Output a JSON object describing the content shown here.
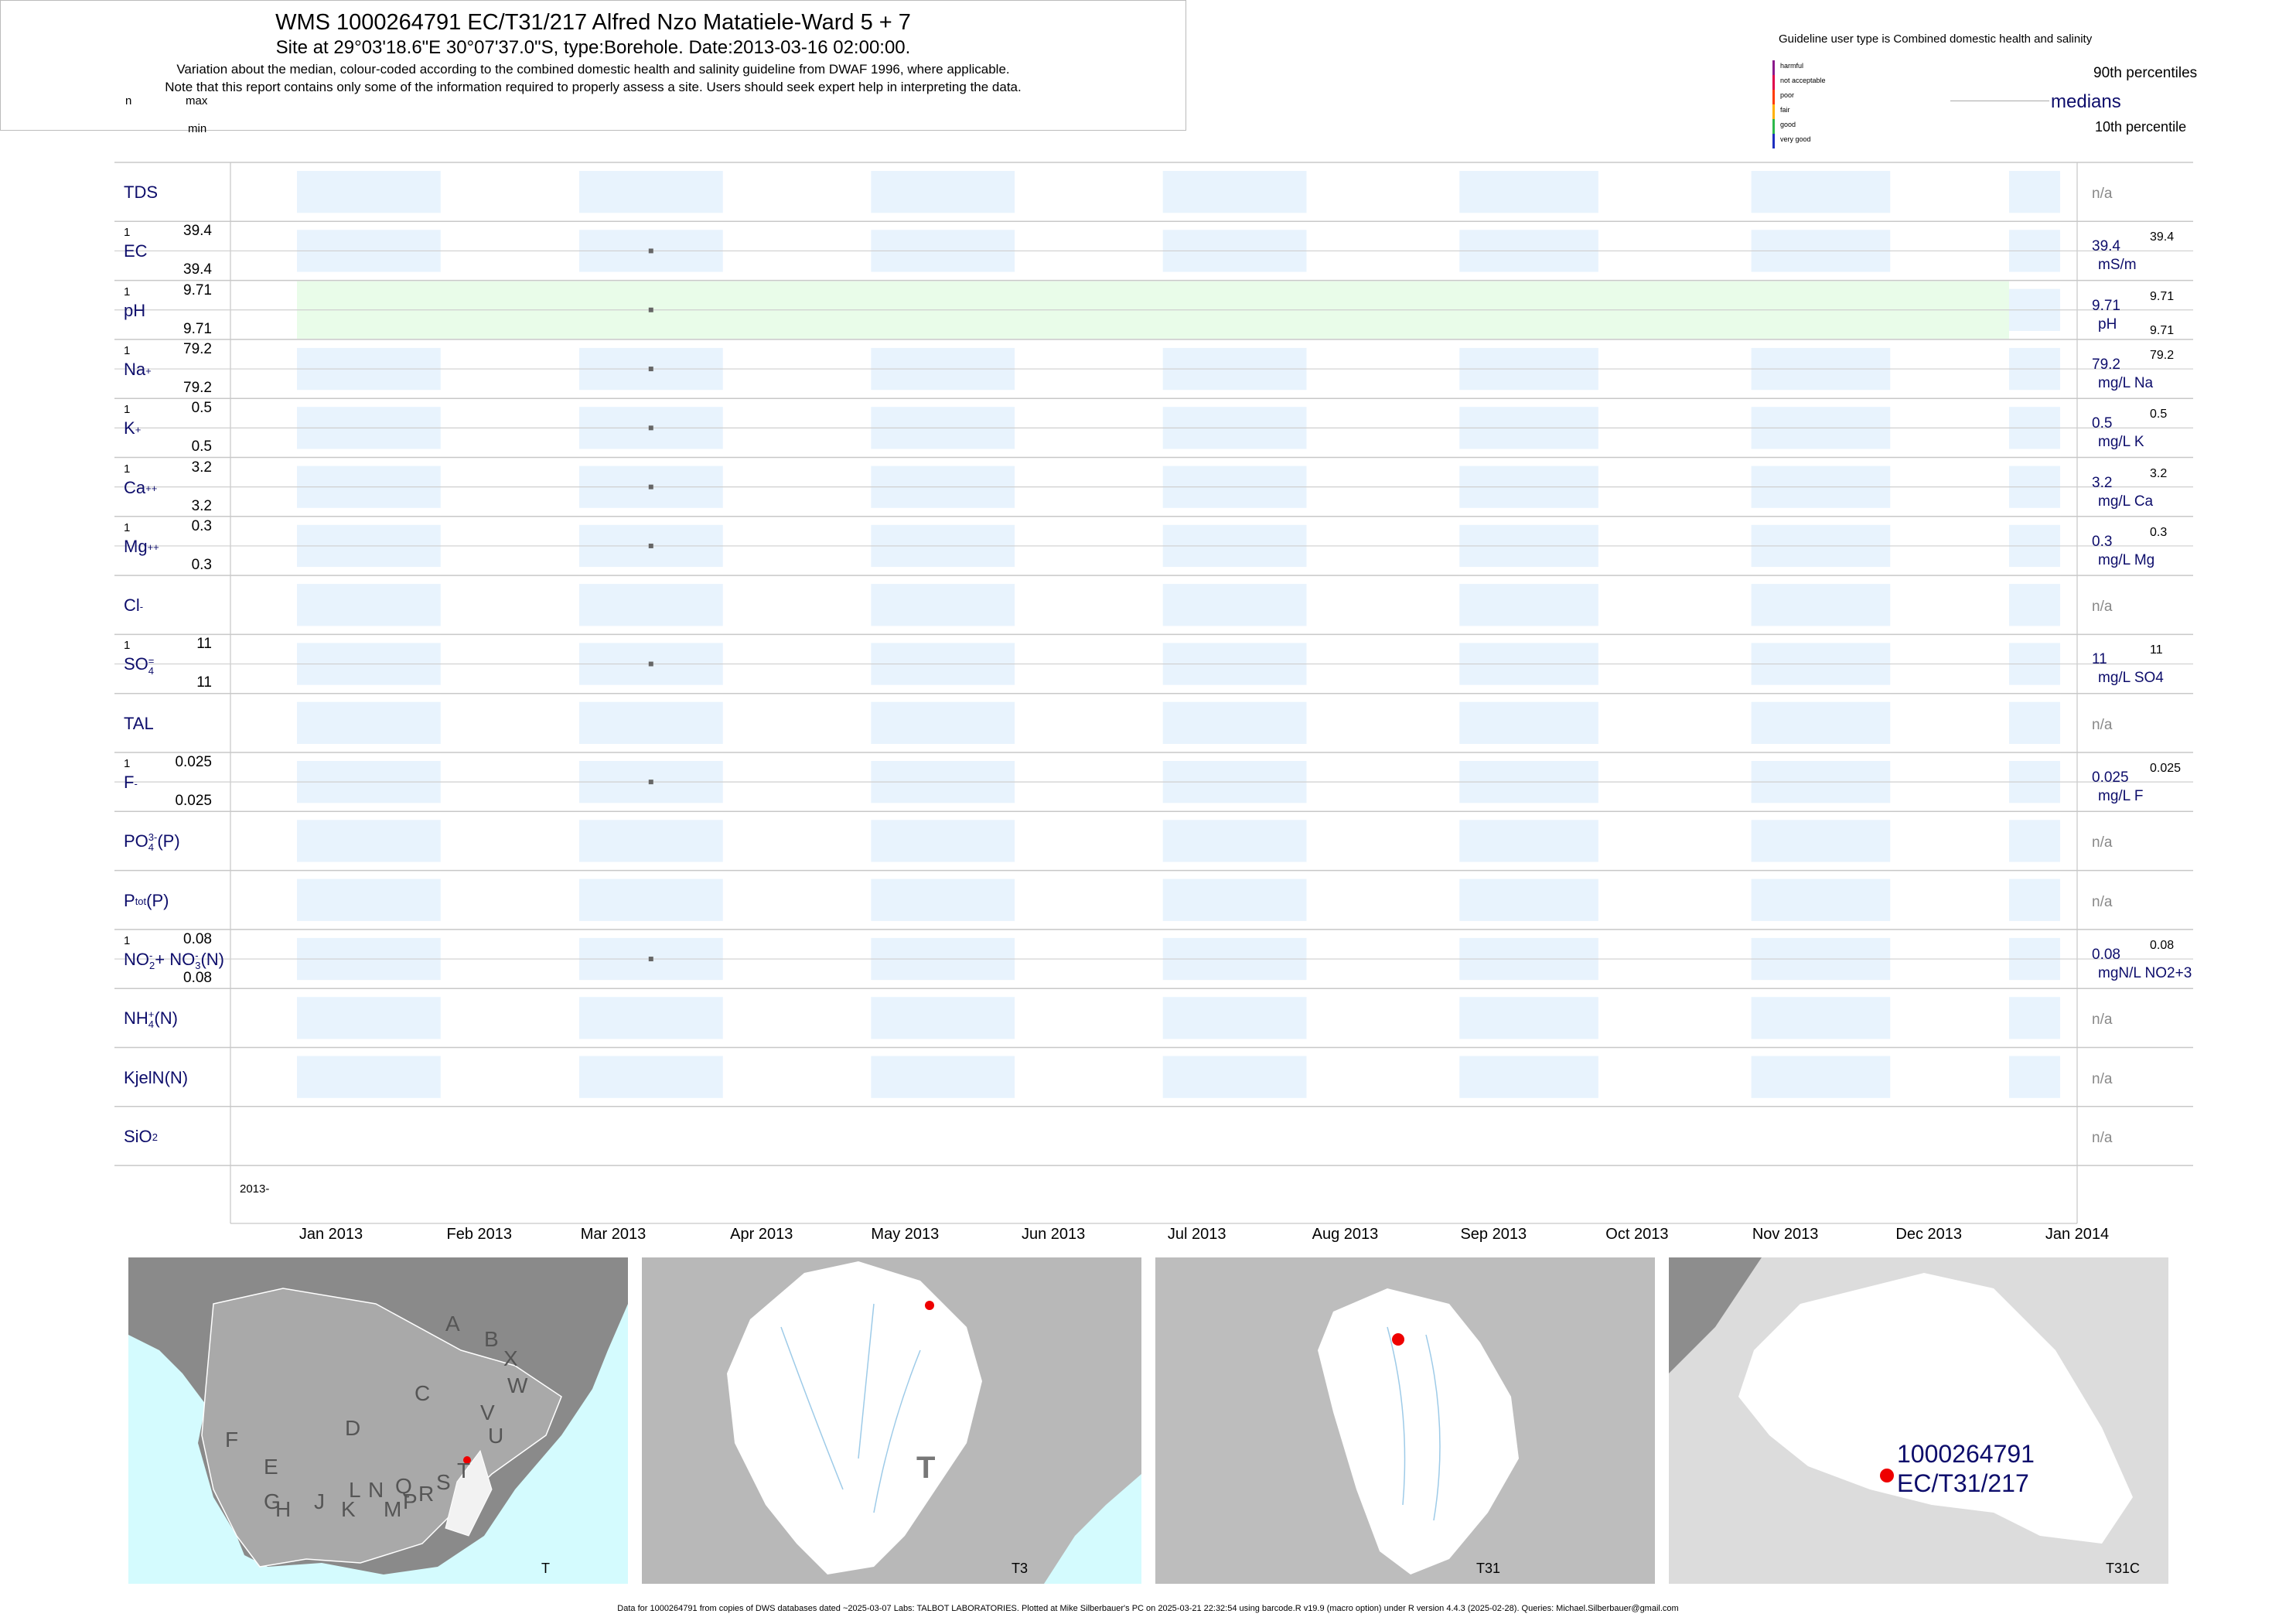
{
  "header": {
    "title": "WMS 1000264791 EC/T31/217 Alfred Nzo Matatiele-Ward 5 + 7",
    "site": "Site at 29°03'18.6\"E 30°07'37.0\"S, type:Borehole. Date:2013-03-16 02:00:00.",
    "note1": "Variation about the median,  colour-coded according to the combined domestic health and salinity guideline from DWAF 1996, where applicable.",
    "note2": "Note that this report contains only some of the information required to properly assess a site. Users should seek expert help in interpreting the data.",
    "n_label": "n",
    "max_label": "max",
    "min_label": "min"
  },
  "legend": {
    "guideline": "Guideline user type is Combined domestic health and salinity",
    "classes": [
      {
        "label": "harmful",
        "color": "#8b1a8b"
      },
      {
        "label": "not acceptable",
        "color": "#e0004a"
      },
      {
        "label": "poor",
        "color": "#ff3b00"
      },
      {
        "label": "fair",
        "color": "#ffb000"
      },
      {
        "label": "good",
        "color": "#2db84b"
      },
      {
        "label": "very good",
        "color": "#1d2fbf"
      }
    ],
    "p90": "90th percentiles",
    "medians": "medians",
    "p10": "10th percentile"
  },
  "chart_data": {
    "type": "scatter",
    "x_axis": {
      "start_label": "2013-",
      "ticks": [
        "Jan 2013",
        "Feb 2013",
        "Mar 2013",
        "Apr 2013",
        "May 2013",
        "Jun 2013",
        "Jul 2013",
        "Aug 2013",
        "Sep 2013",
        "Oct 2013",
        "Nov 2013",
        "Dec 2013",
        "Jan 2014"
      ]
    },
    "sample_date": "2013-03-16",
    "band_colors": {
      "default": "#e8f3fd",
      "ph_good": "#e9fce9"
    },
    "rows": [
      {
        "name": "TDS",
        "n": "",
        "max": "",
        "min": "",
        "value": null,
        "median": "n/a",
        "unit": "",
        "p90": ""
      },
      {
        "name": "EC",
        "n": "1",
        "max": "39.4",
        "min": "39.4",
        "value": 39.4,
        "median": "39.4",
        "unit": "mS/m",
        "p90": "39.4"
      },
      {
        "name": "pH",
        "n": "1",
        "max": "9.71",
        "min": "9.71",
        "value": 9.71,
        "median": "9.71",
        "unit": "pH",
        "p90": "9.71",
        "p10": "9.71"
      },
      {
        "name": "Na",
        "sup": "+",
        "n": "1",
        "max": "79.2",
        "min": "79.2",
        "value": 79.2,
        "median": "79.2",
        "unit": "mg/L Na",
        "p90": "79.2"
      },
      {
        "name": "K",
        "sup": "+",
        "n": "1",
        "max": "0.5",
        "min": "0.5",
        "value": 0.5,
        "median": "0.5",
        "unit": "mg/L K",
        "p90": "0.5"
      },
      {
        "name": "Ca",
        "sup": "++",
        "n": "1",
        "max": "3.2",
        "min": "3.2",
        "value": 3.2,
        "median": "3.2",
        "unit": "mg/L Ca",
        "p90": "3.2"
      },
      {
        "name": "Mg",
        "sup": "++",
        "n": "1",
        "max": "0.3",
        "min": "0.3",
        "value": 0.3,
        "median": "0.3",
        "unit": "mg/L Mg",
        "p90": "0.3"
      },
      {
        "name": "Cl",
        "sup": "-",
        "n": "",
        "max": "",
        "min": "",
        "value": null,
        "median": "n/a",
        "unit": "",
        "p90": ""
      },
      {
        "name": "SO",
        "sub": "4",
        "sup": "=",
        "n": "1",
        "max": "11",
        "min": "11",
        "value": 11,
        "median": "11",
        "unit": "mg/L SO4",
        "p90": "11"
      },
      {
        "name": "TAL",
        "n": "",
        "max": "",
        "min": "",
        "value": null,
        "median": "n/a",
        "unit": "",
        "p90": ""
      },
      {
        "name": "F",
        "sup": "-",
        "n": "1",
        "max": "0.025",
        "min": "0.025",
        "value": 0.025,
        "median": "0.025",
        "unit": "mg/L F",
        "p90": "0.025"
      },
      {
        "name": "PO",
        "sub": "4",
        "sup": "3-",
        "tail": "(P)",
        "n": "",
        "max": "",
        "min": "",
        "value": null,
        "median": "n/a",
        "unit": "",
        "p90": ""
      },
      {
        "name": "P",
        "sub": "tot",
        "tail": "(P)",
        "n": "",
        "max": "",
        "min": "",
        "value": null,
        "median": "n/a",
        "unit": "",
        "p90": ""
      },
      {
        "name": "NO",
        "sub": "2",
        "sup": "-",
        "tail2": "+ NO",
        "sub2": "3",
        "sup2": "-",
        "tail": "(N)",
        "n": "1",
        "max": "0.08",
        "min": "0.08",
        "value": 0.08,
        "median": "0.08",
        "unit": "mgN/L NO2+3",
        "p90": "0.08"
      },
      {
        "name": "NH",
        "sub": "4",
        "sup": "+",
        "tail": "(N)",
        "n": "",
        "max": "",
        "min": "",
        "value": null,
        "median": "n/a",
        "unit": "",
        "p90": ""
      },
      {
        "name": "KjelN(N)",
        "n": "",
        "max": "",
        "min": "",
        "value": null,
        "median": "n/a",
        "unit": "",
        "p90": ""
      },
      {
        "name": "SiO",
        "sub": "2",
        "n": "",
        "max": "",
        "min": "",
        "value": null,
        "median": "n/a",
        "unit": "",
        "p90": ""
      }
    ]
  },
  "maps": [
    {
      "label": "T",
      "regions": [
        "A",
        "B",
        "X",
        "C",
        "W",
        "D",
        "V",
        "U",
        "F",
        "T",
        "E",
        "S",
        "G",
        "H",
        "J",
        "L",
        "N",
        "Q",
        "R",
        "K",
        "M",
        "P"
      ]
    },
    {
      "label": "T3",
      "big": "T"
    },
    {
      "label": "T31"
    },
    {
      "label": "T31C",
      "site_id": "1000264791",
      "site_code": "EC/T31/217"
    }
  ],
  "footer": "Data for 1000264791 from copies of DWS databases dated ~2025-03-07 Labs: TALBOT LABORATORIES. Plotted at Mike Silberbauer's PC on 2025-03-21 22:32:54 using barcode.R v19.9 (macro option) under R version 4.4.3 (2025-02-28). Queries: Michael.Silberbauer@gmail.com"
}
